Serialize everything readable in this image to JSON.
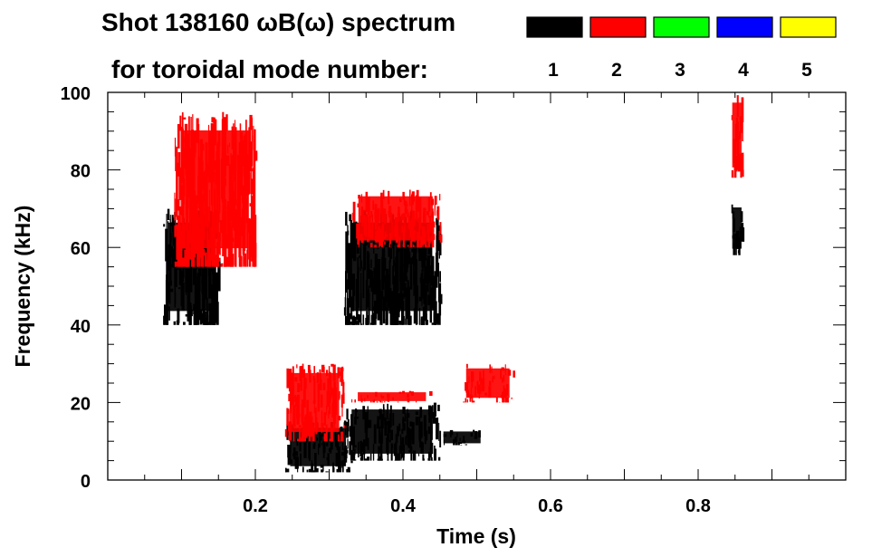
{
  "chart_data": {
    "type": "spectrogram",
    "title_line1": "Shot 138160 ωB(ω) spectrum",
    "title_line2": "for toroidal mode number:",
    "xlabel": "Time (s)",
    "ylabel": "Frequency (kHz)",
    "xlim": [
      0.0,
      1.0
    ],
    "ylim": [
      0,
      100
    ],
    "x_ticks": [
      0.2,
      0.4,
      0.6,
      0.8
    ],
    "x_tick_labels": [
      "0.2",
      "0.4",
      "0.6",
      "0.8"
    ],
    "y_ticks": [
      0,
      20,
      40,
      60,
      80,
      100
    ],
    "y_tick_labels": [
      "0",
      "20",
      "40",
      "60",
      "80",
      "100"
    ],
    "legend": [
      {
        "n": "1",
        "color": "#000000"
      },
      {
        "n": "2",
        "color": "#ff0000"
      },
      {
        "n": "3",
        "color": "#00ff00"
      },
      {
        "n": "4",
        "color": "#0000ff"
      },
      {
        "n": "5",
        "color": "#ffff00"
      }
    ],
    "regions": [
      {
        "mode": "1",
        "t": [
          0.075,
          0.15
        ],
        "f": [
          40,
          70
        ]
      },
      {
        "mode": "2",
        "t": [
          0.09,
          0.2
        ],
        "f": [
          55,
          95
        ]
      },
      {
        "mode": "1",
        "t": [
          0.24,
          0.33
        ],
        "f": [
          2,
          15
        ]
      },
      {
        "mode": "2",
        "t": [
          0.24,
          0.32
        ],
        "f": [
          10,
          30
        ]
      },
      {
        "mode": "1",
        "t": [
          0.32,
          0.45
        ],
        "f": [
          5,
          20
        ]
      },
      {
        "mode": "2",
        "t": [
          0.33,
          0.44
        ],
        "f": [
          20,
          23
        ]
      },
      {
        "mode": "1",
        "t": [
          0.32,
          0.45
        ],
        "f": [
          40,
          70
        ]
      },
      {
        "mode": "2",
        "t": [
          0.33,
          0.45
        ],
        "f": [
          60,
          75
        ]
      },
      {
        "mode": "1",
        "t": [
          0.45,
          0.51
        ],
        "f": [
          9,
          13
        ]
      },
      {
        "mode": "2",
        "t": [
          0.48,
          0.55
        ],
        "f": [
          20,
          30
        ]
      },
      {
        "mode": "1",
        "t": [
          0.845,
          0.86
        ],
        "f": [
          58,
          72
        ]
      },
      {
        "mode": "2",
        "t": [
          0.845,
          0.86
        ],
        "f": [
          78,
          100
        ]
      }
    ]
  }
}
